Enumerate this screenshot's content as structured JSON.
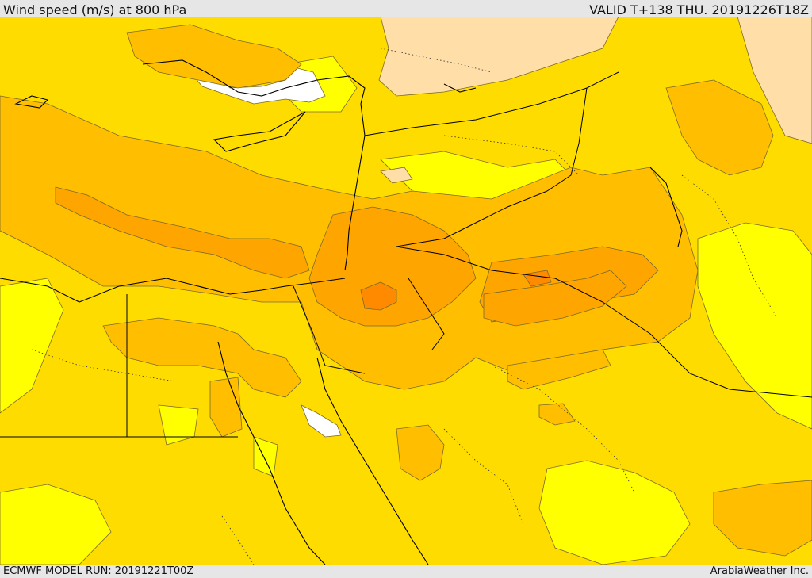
{
  "header": {
    "title": "Wind speed (m/s) at 800 hPa",
    "valid": "VALID T+138 THU. 20191226T18Z"
  },
  "footer": {
    "model_run": "ECMWF MODEL RUN: 20191221T00Z",
    "credit": "ArabiaWeather Inc."
  },
  "map": {
    "colors": {
      "calm": "#ffffff",
      "lightest": "#ffdea8",
      "light_yellow": "#ffff00",
      "yellow": "#ffdc00",
      "light_orange": "#ffbf00",
      "orange": "#ffa500",
      "dark_orange": "#ff8a00",
      "contour": "#7a6a2a",
      "coast": "#000000",
      "border": "#000000"
    }
  }
}
